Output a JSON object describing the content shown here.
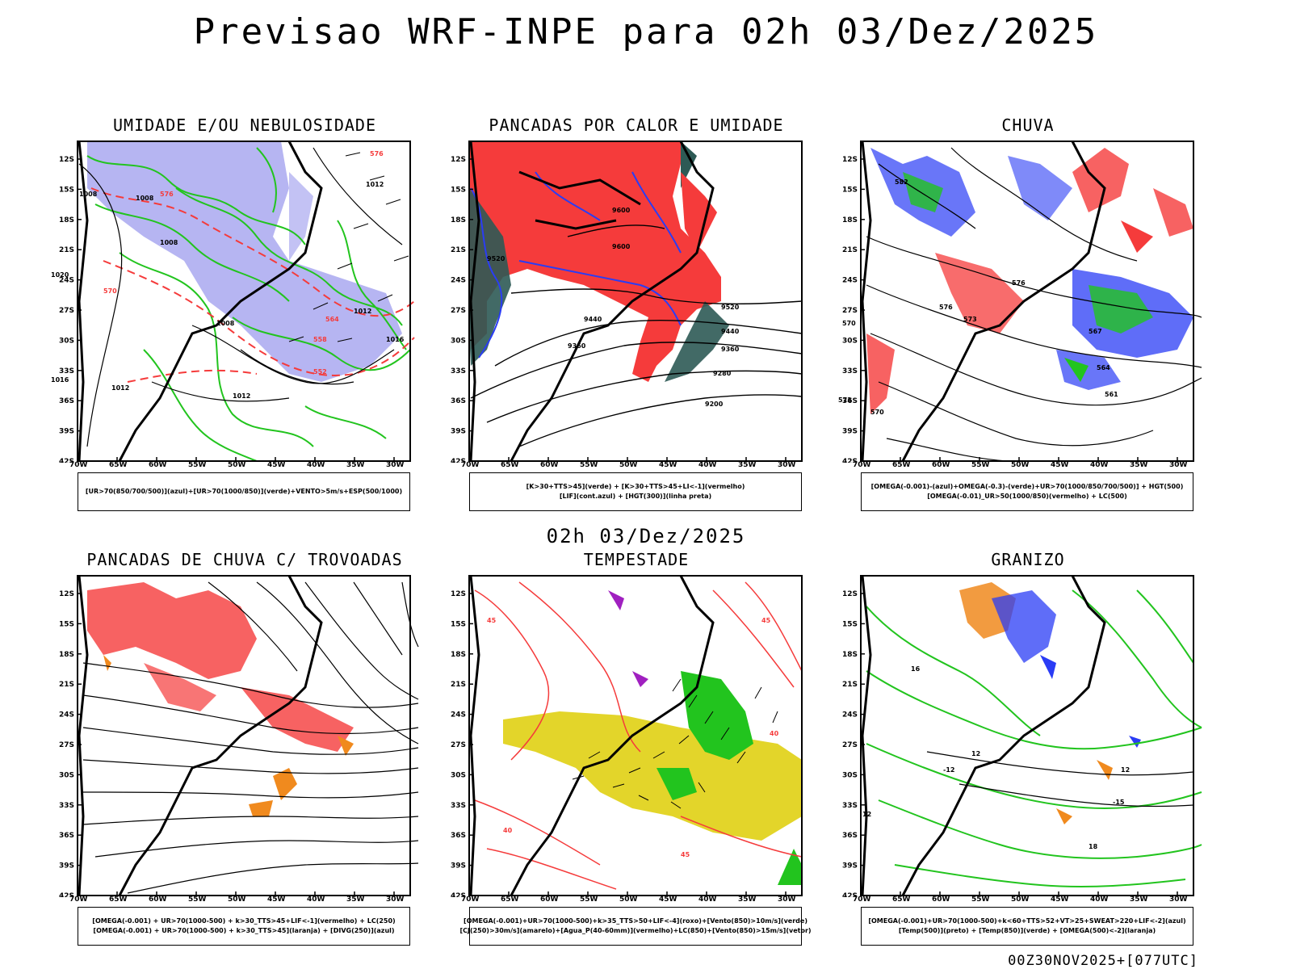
{
  "main_title": "Previsao WRF-INPE  para 02h 03/Dez/2025",
  "mid_title": "02h 03/Dez/2025",
  "footer_code": "00Z30NOV2025+[077UTC]",
  "lat_ticks": [
    "12S",
    "15S",
    "18S",
    "21S",
    "24S",
    "27S",
    "30S",
    "33S",
    "36S",
    "39S",
    "42S"
  ],
  "lon_ticks": [
    "70W",
    "65W",
    "60W",
    "55W",
    "50W",
    "45W",
    "40W",
    "35W",
    "30W"
  ],
  "colors": {
    "red": "#f53b3b",
    "green": "#22c41e",
    "blue": "#2a3cf5",
    "lavender": "#a9a8f0",
    "darkteal": "#2d5a55",
    "yellow": "#e3d52a",
    "orange": "#f08a1e",
    "purple": "#a020c0",
    "black": "#000000"
  },
  "panels": [
    {
      "title": "UMIDADE E/OU NEBULOSIDADE",
      "legend": [
        "[UR>70(850/700/500)](azul)+[UR>70(1000/850)](verde)+VENTO>5m/s+ESP(500/1000)"
      ],
      "contour_labels": [
        "1008",
        "1008",
        "1008",
        "1012",
        "1012",
        "1016",
        "1016",
        "1020",
        "1012",
        "1012",
        "1008",
        "576",
        "576",
        "570",
        "564",
        "558",
        "552"
      ]
    },
    {
      "title": "PANCADAS POR CALOR E UMIDADE",
      "legend": [
        "[K>30+TTS>45](verde) + [K>30+TTS>45+LI<-1](vermelho)",
        "[LIF](cont.azul) + [HGT(300)](linha preta)"
      ],
      "contour_labels": [
        "9600",
        "9600",
        "9520",
        "9520",
        "9440",
        "9440",
        "9360",
        "9360",
        "9280",
        "9200"
      ]
    },
    {
      "title": "CHUVA",
      "legend": [
        "[OMEGA(-0.001)-(azul)+OMEGA(-0.3)-(verde)+UR>70(1000/850/700/500)] + HGT(500)",
        "[OMEGA(-0.01)_UR>50(1000/850)(vermelho) + LC(500)"
      ],
      "contour_labels": [
        "582",
        "576",
        "576",
        "573",
        "570",
        "573",
        "570",
        "567",
        "564",
        "561"
      ]
    },
    {
      "title": "PANCADAS DE CHUVA C/ TROVOADAS",
      "legend": [
        "[OMEGA(-0.001) + UR>70(1000-500) + k>30_TTS>45+LIF<-1](vermelho) + LC(250)",
        "[OMEGA(-0.001) + UR>70(1000-500) + k>30_TTS>45](laranja) + [DIVG(250)](azul)"
      ],
      "contour_labels": []
    },
    {
      "title": "TEMPESTADE",
      "legend": [
        "[OMEGA(-0.001)+UR>70(1000-500)+k>35_TTS>50+LIF<-4](roxo)+[Vento(850)>10m/s](verde)",
        "[CJ(250)>30m/s](amarelo)+[Agua_P(40-60mm)](vermelho)+LC(850)+[Vento(850)>15m/s](vetor)"
      ],
      "contour_labels": [
        "45",
        "45",
        "40",
        "40",
        "45"
      ]
    },
    {
      "title": "GRANIZO",
      "legend": [
        "[OMEGA(-0.001)+UR>70(1000-500)+k<60+TTS>52+VT>25+SWEAT>220+LIF<-2](azul)",
        "[Temp(500)](preto) + [Temp(850)](verde) + [OMEGA(500)<-2](laranja)"
      ],
      "contour_labels": [
        "12",
        "12",
        "-15",
        "-12",
        "18",
        "16",
        "12"
      ]
    }
  ]
}
